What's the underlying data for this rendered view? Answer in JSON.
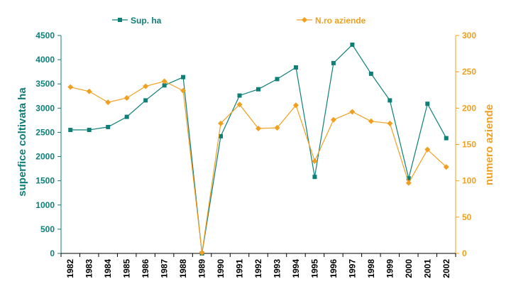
{
  "chart_data": {
    "type": "line",
    "title": "",
    "categories": [
      "1982",
      "1983",
      "1984",
      "1985",
      "1986",
      "1987",
      "1988",
      "1989",
      "1990",
      "1991",
      "1992",
      "1993",
      "1994",
      "1995",
      "1996",
      "1997",
      "1998",
      "1999",
      "2000",
      "2001",
      "2002"
    ],
    "y_left": {
      "label": "superfice coltivata ha",
      "range": [
        0,
        4500
      ],
      "ticks": [
        "0",
        "500",
        "1000",
        "1500",
        "2000",
        "2500",
        "3000",
        "3500",
        "4000",
        "4500"
      ]
    },
    "y_right": {
      "label": "numero aziende",
      "range": [
        0,
        300
      ],
      "ticks": [
        "0",
        "50",
        "100",
        "150",
        "200",
        "250",
        "300"
      ]
    },
    "legend_position": "top",
    "grid": false,
    "series": [
      {
        "name": "Sup. ha",
        "axis": "left",
        "color": "#0e7f78",
        "marker": "square",
        "values": [
          2550,
          2550,
          2610,
          2820,
          3160,
          3470,
          3640,
          0,
          2420,
          3260,
          3390,
          3600,
          3840,
          1580,
          3930,
          4310,
          3710,
          3160,
          1550,
          3090,
          2380
        ]
      },
      {
        "name": "N.ro aziende",
        "axis": "right",
        "color": "#f0a020",
        "marker": "diamond",
        "values": [
          229,
          223,
          208,
          214,
          230,
          237,
          224,
          1,
          179,
          205,
          172,
          173,
          204,
          127,
          184,
          195,
          182,
          179,
          97,
          143,
          119
        ]
      }
    ]
  }
}
